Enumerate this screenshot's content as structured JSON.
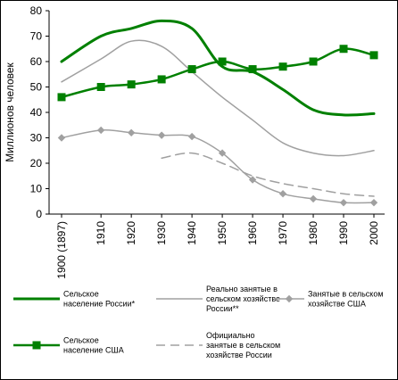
{
  "chart_data": {
    "type": "line",
    "ylabel": "Миллионов человек",
    "ylim": [
      0,
      80
    ],
    "yticks": [
      0,
      10,
      20,
      30,
      40,
      50,
      60,
      70,
      80
    ],
    "xlim": [
      1897,
      2000
    ],
    "xticks": [
      {
        "value": 1897,
        "label": "1900 (1897)"
      },
      {
        "value": 1910,
        "label": "1910"
      },
      {
        "value": 1920,
        "label": "1920"
      },
      {
        "value": 1930,
        "label": "1930"
      },
      {
        "value": 1940,
        "label": "1940"
      },
      {
        "value": 1950,
        "label": "1950"
      },
      {
        "value": 1960,
        "label": "1960"
      },
      {
        "value": 1970,
        "label": "1970"
      },
      {
        "value": 1980,
        "label": "1980"
      },
      {
        "value": 1990,
        "label": "1990"
      },
      {
        "value": 2000,
        "label": "2000"
      }
    ],
    "grid": "none",
    "legend_position": "bottom",
    "series": [
      {
        "name": "Сельское население России*",
        "color": "#008000",
        "style": "solid-thick",
        "marker": "none",
        "points": [
          [
            1897,
            60
          ],
          [
            1910,
            70
          ],
          [
            1920,
            73
          ],
          [
            1930,
            76
          ],
          [
            1940,
            73
          ],
          [
            1950,
            58
          ],
          [
            1960,
            56
          ],
          [
            1970,
            49
          ],
          [
            1980,
            41
          ],
          [
            1990,
            39
          ],
          [
            2000,
            39.5
          ]
        ]
      },
      {
        "name": "Реально занятые в сельском хозяйстве России**",
        "color": "#a0a0a0",
        "style": "solid",
        "marker": "none",
        "points": [
          [
            1897,
            52
          ],
          [
            1910,
            61
          ],
          [
            1920,
            68
          ],
          [
            1930,
            66
          ],
          [
            1940,
            56
          ],
          [
            1950,
            46
          ],
          [
            1960,
            37
          ],
          [
            1970,
            28
          ],
          [
            1980,
            24
          ],
          [
            1990,
            23
          ],
          [
            2000,
            25
          ]
        ]
      },
      {
        "name": "Занятые в сельском хозяйстве США",
        "color": "#a0a0a0",
        "style": "solid",
        "marker": "diamond",
        "points": [
          [
            1897,
            30
          ],
          [
            1910,
            33
          ],
          [
            1920,
            32
          ],
          [
            1930,
            31
          ],
          [
            1940,
            30.5
          ],
          [
            1950,
            24
          ],
          [
            1960,
            13.5
          ],
          [
            1970,
            8
          ],
          [
            1980,
            6
          ],
          [
            1990,
            4.5
          ],
          [
            2000,
            4.5
          ]
        ]
      },
      {
        "name": "Сельское население США",
        "color": "#008000",
        "style": "solid",
        "marker": "square",
        "points": [
          [
            1897,
            46
          ],
          [
            1910,
            50
          ],
          [
            1920,
            51
          ],
          [
            1930,
            53
          ],
          [
            1940,
            57
          ],
          [
            1950,
            60
          ],
          [
            1960,
            57
          ],
          [
            1970,
            58
          ],
          [
            1980,
            60
          ],
          [
            1990,
            65
          ],
          [
            2000,
            62.5
          ]
        ]
      },
      {
        "name": "Официально занятые в сельском хозяйстве России",
        "color": "#a0a0a0",
        "style": "dashed",
        "marker": "none",
        "points": [
          [
            1930,
            22
          ],
          [
            1940,
            24
          ],
          [
            1950,
            20
          ],
          [
            1960,
            15
          ],
          [
            1970,
            12
          ],
          [
            1980,
            10
          ],
          [
            1990,
            8
          ],
          [
            2000,
            7
          ]
        ]
      }
    ],
    "legend": [
      {
        "series_index": 0,
        "lines": [
          "Сельское",
          "население России*"
        ]
      },
      {
        "series_index": 1,
        "lines": [
          "Реально занятые в",
          "сельском хозяйстве",
          "России**"
        ]
      },
      {
        "series_index": 2,
        "lines": [
          "Занятые в сельском",
          "хозяйстве США"
        ]
      },
      {
        "series_index": 3,
        "lines": [
          "Сельское",
          "население США"
        ]
      },
      {
        "series_index": 4,
        "lines": [
          "Официально",
          "занятые в сельском",
          "хозяйстве России"
        ]
      }
    ]
  }
}
